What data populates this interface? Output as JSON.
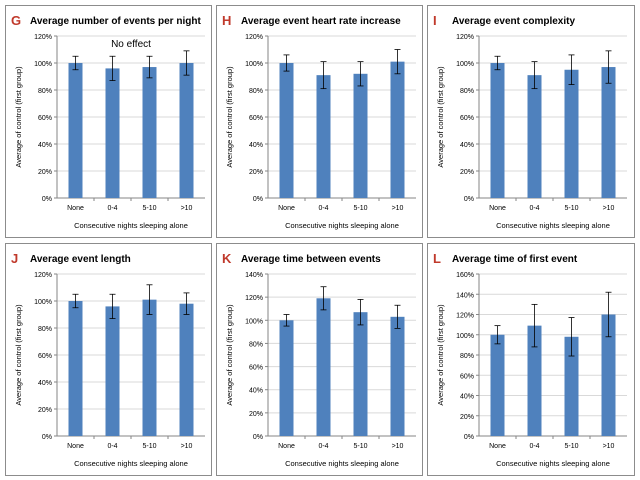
{
  "chart_data": [
    {
      "type": "bar",
      "panel_letter": "G",
      "title": "Average number of events per night",
      "annotation": "No effect",
      "categories": [
        "None",
        "0-4",
        "5-10",
        ">10"
      ],
      "values": [
        100,
        96,
        97,
        100
      ],
      "errors": [
        5,
        9,
        8,
        9
      ],
      "ylim": [
        0,
        120
      ],
      "yticks": [
        0,
        20,
        40,
        60,
        80,
        100,
        120
      ],
      "ytick_labels": [
        "0%",
        "20%",
        "40%",
        "60%",
        "80%",
        "100%",
        "120%"
      ],
      "xlabel": "Consecutive nights sleeping alone",
      "ylabel": "Average of control (first group)",
      "grid": true
    },
    {
      "type": "bar",
      "panel_letter": "H",
      "title": "Average event heart rate increase",
      "categories": [
        "None",
        "0-4",
        "5-10",
        ">10"
      ],
      "values": [
        100,
        91,
        92,
        101
      ],
      "errors": [
        6,
        10,
        9,
        9
      ],
      "ylim": [
        0,
        120
      ],
      "yticks": [
        0,
        20,
        40,
        60,
        80,
        100,
        120
      ],
      "ytick_labels": [
        "0%",
        "20%",
        "40%",
        "60%",
        "80%",
        "100%",
        "120%"
      ],
      "xlabel": "Consecutive nights sleeping alone",
      "ylabel": "Average of control (first group)",
      "grid": true
    },
    {
      "type": "bar",
      "panel_letter": "I",
      "title": "Average event complexity",
      "categories": [
        "None",
        "0-4",
        "5-10",
        ">10"
      ],
      "values": [
        100,
        91,
        95,
        97
      ],
      "errors": [
        5,
        10,
        11,
        12
      ],
      "ylim": [
        0,
        120
      ],
      "yticks": [
        0,
        20,
        40,
        60,
        80,
        100,
        120
      ],
      "ytick_labels": [
        "0%",
        "20%",
        "40%",
        "60%",
        "80%",
        "100%",
        "120%"
      ],
      "xlabel": "Consecutive nights sleeping alone",
      "ylabel": "Average of control (first group)",
      "grid": true
    },
    {
      "type": "bar",
      "panel_letter": "J",
      "title": "Average event length",
      "categories": [
        "None",
        "0-4",
        "5-10",
        ">10"
      ],
      "values": [
        100,
        96,
        101,
        98
      ],
      "errors": [
        5,
        9,
        11,
        8
      ],
      "ylim": [
        0,
        120
      ],
      "yticks": [
        0,
        20,
        40,
        60,
        80,
        100,
        120
      ],
      "ytick_labels": [
        "0%",
        "20%",
        "40%",
        "60%",
        "80%",
        "100%",
        "120%"
      ],
      "xlabel": "Consecutive nights sleeping alone",
      "ylabel": "Average of control (first group)",
      "grid": true
    },
    {
      "type": "bar",
      "panel_letter": "K",
      "title": "Average time between events",
      "categories": [
        "None",
        "0-4",
        "5-10",
        ">10"
      ],
      "values": [
        100,
        119,
        107,
        103
      ],
      "errors": [
        5,
        10,
        11,
        10
      ],
      "ylim": [
        0,
        140
      ],
      "yticks": [
        0,
        20,
        40,
        60,
        80,
        100,
        120,
        140
      ],
      "ytick_labels": [
        "0%",
        "20%",
        "40%",
        "60%",
        "80%",
        "100%",
        "120%",
        "140%"
      ],
      "xlabel": "Consecutive nights sleeping alone",
      "ylabel": "Average of control (first group)",
      "grid": true
    },
    {
      "type": "bar",
      "panel_letter": "L",
      "title": "Average time of first event",
      "categories": [
        "None",
        "0-4",
        "5-10",
        ">10"
      ],
      "values": [
        100,
        109,
        98,
        120
      ],
      "errors": [
        9,
        21,
        19,
        22
      ],
      "ylim": [
        0,
        160
      ],
      "yticks": [
        0,
        20,
        40,
        60,
        80,
        100,
        120,
        140,
        160
      ],
      "ytick_labels": [
        "0%",
        "20%",
        "40%",
        "60%",
        "80%",
        "100%",
        "120%",
        "140%",
        "160%"
      ],
      "xlabel": "Consecutive nights sleeping alone",
      "ylabel": "Average of control (first group)",
      "grid": true
    }
  ],
  "colors": {
    "bar": "#4f81bd",
    "panel_letter": "#c0392b",
    "frame": "#8c8c8c",
    "grid": "#d9d9d9",
    "axis": "#868686",
    "text": "#000000",
    "error": "#000000"
  }
}
